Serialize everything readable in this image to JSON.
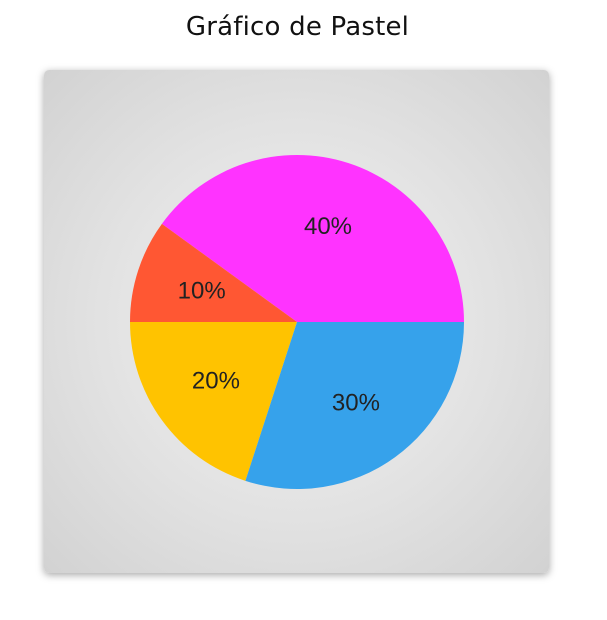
{
  "page": {
    "title": "Gráfico de Pastel"
  },
  "chart_data": {
    "type": "pie",
    "categories": [
      "40%",
      "10%",
      "20%",
      "30%"
    ],
    "values": [
      40,
      10,
      20,
      30
    ],
    "labels": [
      "40%",
      "10%",
      "20%",
      "30%"
    ],
    "colors": [
      "#ff33ff",
      "#ff5733",
      "#ffc300",
      "#36a2eb"
    ],
    "title": "",
    "legend": "none"
  }
}
